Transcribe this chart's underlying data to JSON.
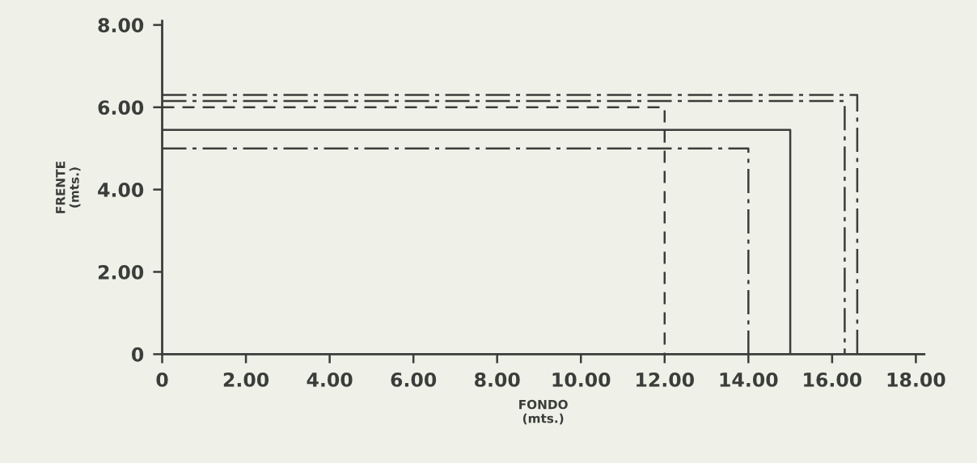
{
  "chart_data": {
    "type": "line",
    "xlabel": "FONDO\n(mts.)",
    "ylabel": "FRENTE\n(mts.)",
    "xlim": [
      0,
      18.2
    ],
    "ylim": [
      0,
      8.1
    ],
    "xticks": [
      {
        "value": 0,
        "label": "0"
      },
      {
        "value": 2,
        "label": "2.00"
      },
      {
        "value": 4,
        "label": "4.00"
      },
      {
        "value": 6,
        "label": "6.00"
      },
      {
        "value": 8,
        "label": "8.00"
      },
      {
        "value": 10,
        "label": "10.00"
      },
      {
        "value": 12,
        "label": "12.00"
      },
      {
        "value": 14,
        "label": "14.00"
      },
      {
        "value": 16,
        "label": "16.00"
      },
      {
        "value": 18,
        "label": "18.00"
      }
    ],
    "yticks": [
      {
        "value": 0,
        "label": "0"
      },
      {
        "value": 2,
        "label": "2.00"
      },
      {
        "value": 4,
        "label": "4.00"
      },
      {
        "value": 6,
        "label": "6.00"
      },
      {
        "value": 8,
        "label": "8.00"
      }
    ],
    "grid": false,
    "marker": "none",
    "series": [
      {
        "color": "#3a3d3a",
        "line_style": "dashdot",
        "x": [
          0,
          16.6,
          16.6
        ],
        "values": [
          6.3,
          6.3,
          0
        ]
      },
      {
        "color": "#3a3d3a",
        "line_style": "dashdot",
        "x": [
          0,
          16.3,
          16.3
        ],
        "values": [
          6.15,
          6.15,
          0
        ]
      },
      {
        "color": "#3a3d3a",
        "line_style": "dashed",
        "x": [
          0,
          12,
          12
        ],
        "values": [
          6.0,
          6.0,
          0
        ]
      },
      {
        "color": "#3a3d3a",
        "line_style": "solid",
        "x": [
          0,
          15.0,
          15.0
        ],
        "values": [
          5.45,
          5.45,
          0
        ]
      },
      {
        "color": "#3a3d3a",
        "line_style": "dashdot",
        "x": [
          0,
          14.0,
          14.0
        ],
        "values": [
          5.0,
          5.0,
          0
        ]
      }
    ]
  }
}
